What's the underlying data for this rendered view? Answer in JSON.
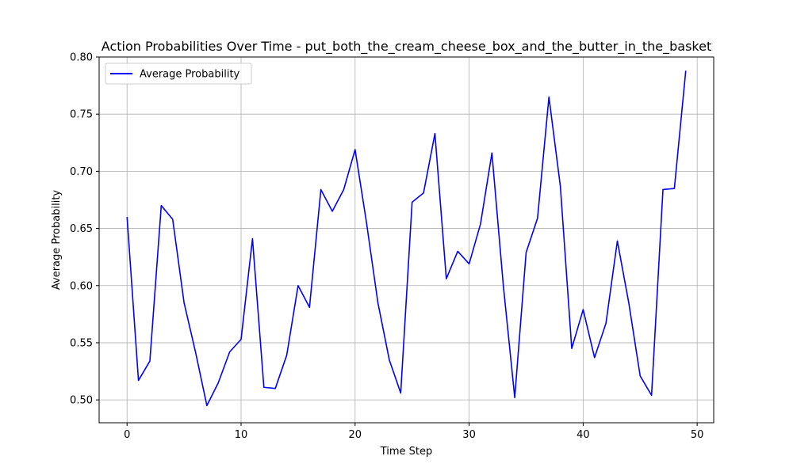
{
  "chart_data": {
    "type": "line",
    "title": "Action Probabilities Over Time - put_both_the_cream_cheese_box_and_the_butter_in_the_basket",
    "xlabel": "Time Step",
    "ylabel": "Average Probability",
    "xlim": [
      -2.45,
      51.45
    ],
    "ylim": [
      0.48,
      0.8
    ],
    "xticks": [
      "0",
      "10",
      "20",
      "30",
      "40",
      "50"
    ],
    "yticks": [
      "0.50",
      "0.55",
      "0.60",
      "0.65",
      "0.70",
      "0.75",
      "0.80"
    ],
    "grid": true,
    "legend": "top-left",
    "series": [
      {
        "name": "Average Probability",
        "color": "#0000ff",
        "x": [
          0,
          1,
          2,
          3,
          4,
          5,
          6,
          7,
          8,
          9,
          10,
          11,
          12,
          13,
          14,
          15,
          16,
          17,
          18,
          19,
          20,
          21,
          22,
          23,
          24,
          25,
          26,
          27,
          28,
          29,
          30,
          31,
          32,
          33,
          34,
          35,
          36,
          37,
          38,
          39,
          40,
          41,
          42,
          43,
          44,
          45,
          46,
          47,
          48,
          49
        ],
        "values": [
          0.66,
          0.517,
          0.534,
          0.67,
          0.658,
          0.585,
          0.542,
          0.495,
          0.515,
          0.542,
          0.553,
          0.641,
          0.511,
          0.51,
          0.539,
          0.6,
          0.581,
          0.684,
          0.665,
          0.684,
          0.719,
          0.655,
          0.585,
          0.535,
          0.506,
          0.673,
          0.681,
          0.733,
          0.606,
          0.63,
          0.619,
          0.654,
          0.716,
          0.6,
          0.502,
          0.629,
          0.659,
          0.765,
          0.687,
          0.545,
          0.579,
          0.537,
          0.567,
          0.639,
          0.585,
          0.521,
          0.504,
          0.684,
          0.685,
          0.788
        ]
      }
    ]
  }
}
